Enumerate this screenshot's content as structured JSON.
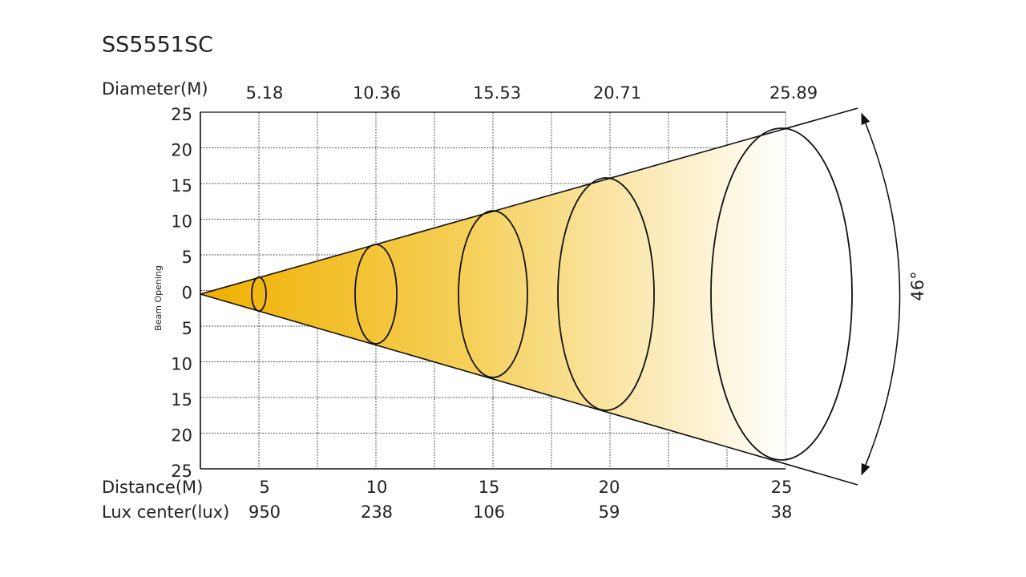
{
  "title": "SS5551SC",
  "diameter": {
    "label": "Diameter(M)",
    "values": [
      "5.18",
      "10.36",
      "15.53",
      "20.71",
      "25.89"
    ]
  },
  "beam_axis": {
    "label": "Beam Opening",
    "ticks": [
      "25",
      "20",
      "15",
      "10",
      "5",
      "0",
      "5",
      "10",
      "15",
      "20",
      "25"
    ]
  },
  "distance": {
    "label": "Distance(M)",
    "values": [
      "5",
      "10",
      "15",
      "20",
      "25"
    ]
  },
  "lux": {
    "label": "Lux center(lux)",
    "values": [
      "950",
      "238",
      "106",
      "59",
      "38"
    ]
  },
  "angle": "46°"
}
